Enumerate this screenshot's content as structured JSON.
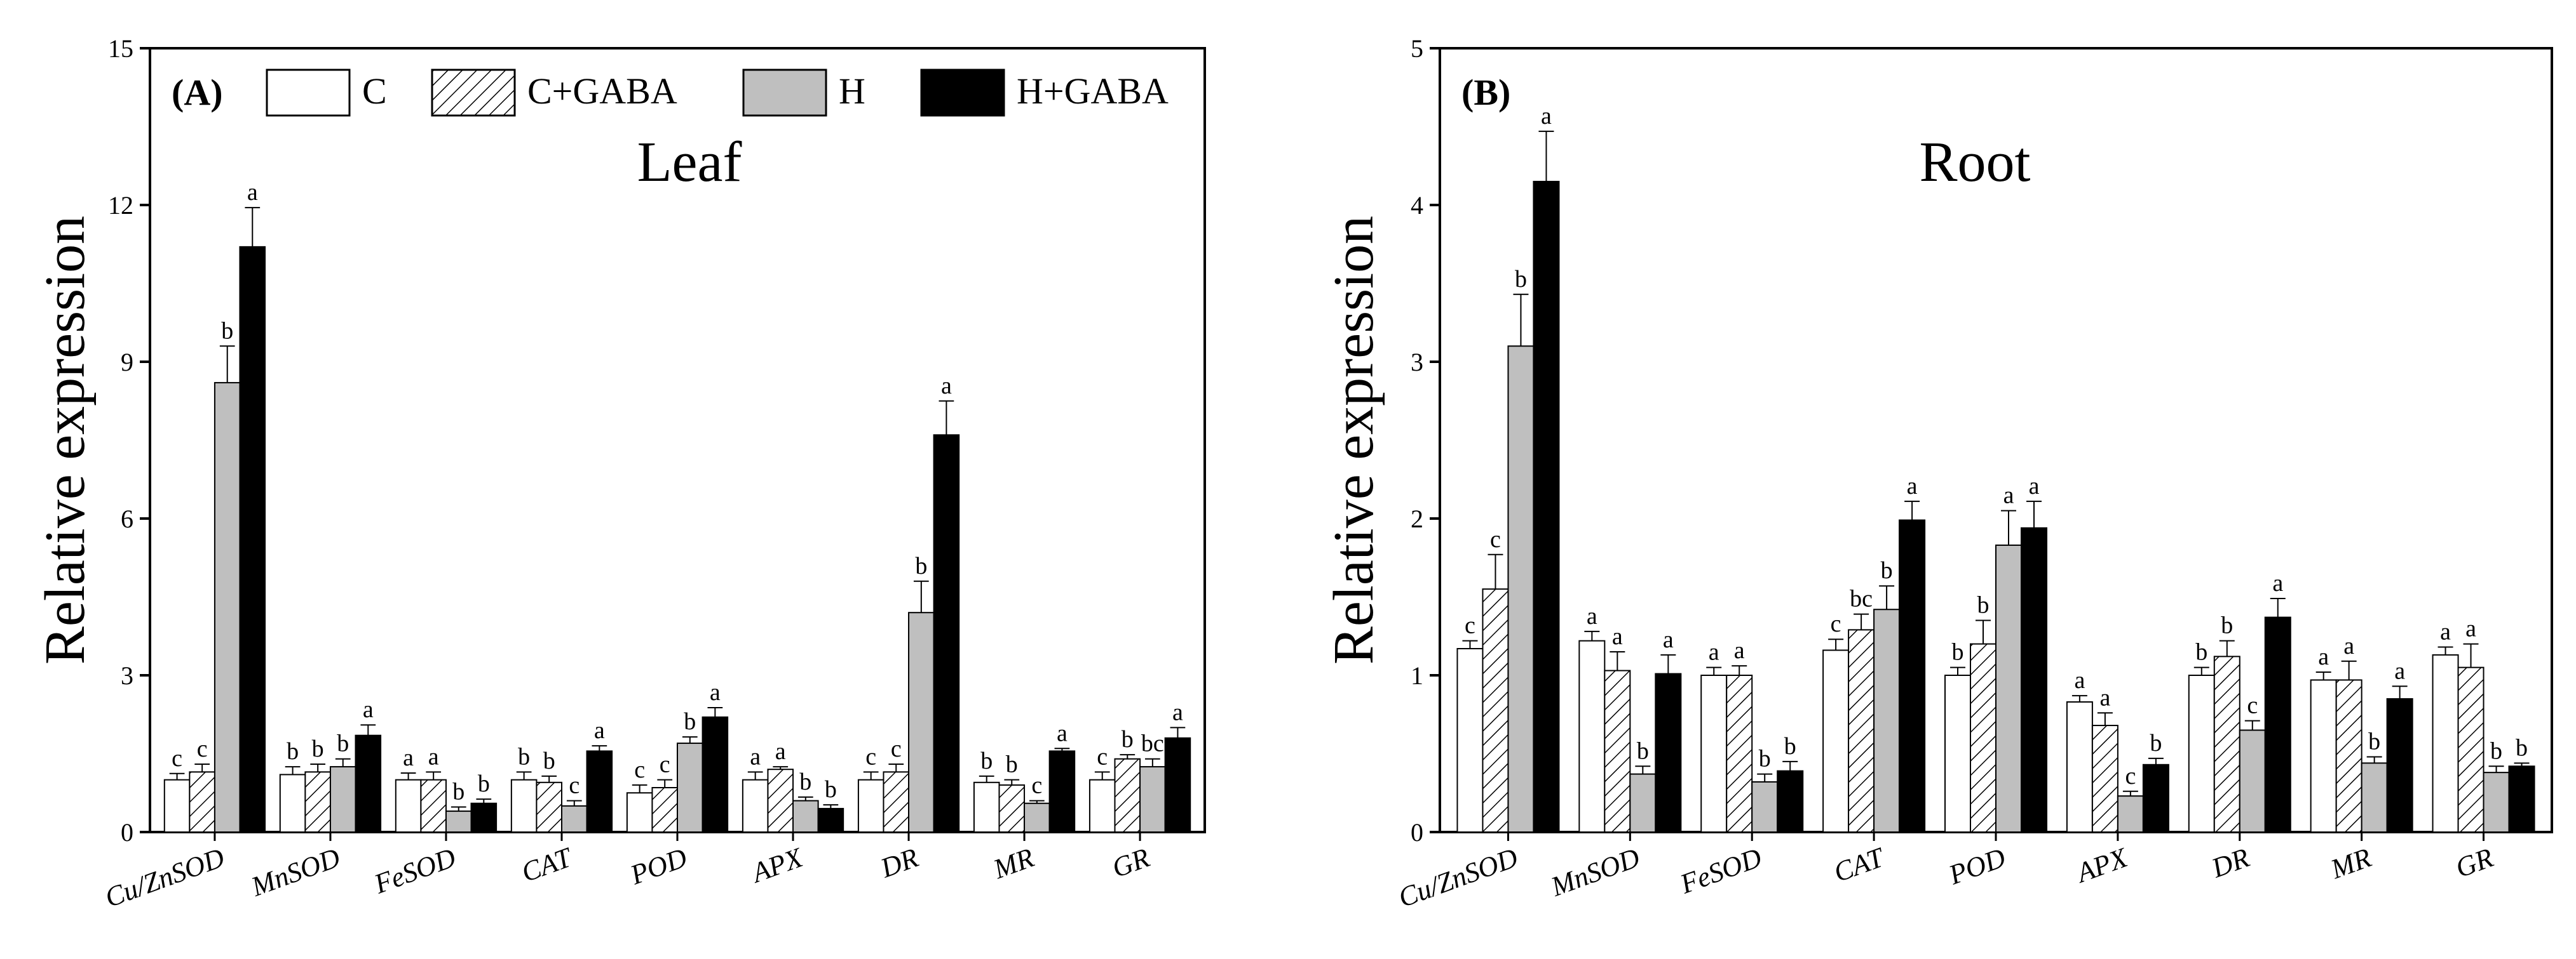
{
  "legend": [
    {
      "label": "C",
      "fill": "white"
    },
    {
      "label": "C+GABA",
      "fill": "hatch"
    },
    {
      "label": "H",
      "fill": "#bfbfbf"
    },
    {
      "label": "H+GABA",
      "fill": "#000000"
    }
  ],
  "colors": {
    "white": "#ffffff",
    "gray": "#bfbfbf",
    "black": "#000000",
    "axis": "#000000"
  },
  "chart_data": [
    {
      "type": "bar",
      "panel_label": "(A)",
      "title": "Leaf",
      "ylabel": "Relative expression",
      "xlabel": "",
      "ylim": [
        0,
        15
      ],
      "yticks": [
        "0",
        "3",
        "6",
        "9",
        "12",
        "15"
      ],
      "legend_position": "top",
      "categories": [
        "Cu/ZnSOD",
        "MnSOD",
        "FeSOD",
        "CAT",
        "POD",
        "APX",
        "DR",
        "MR",
        "GR"
      ],
      "series": [
        {
          "name": "C",
          "values": [
            1.0,
            1.1,
            1.0,
            1.0,
            0.75,
            1.0,
            1.0,
            0.95,
            1.0
          ],
          "errors": [
            0.12,
            0.15,
            0.13,
            0.15,
            0.15,
            0.15,
            0.15,
            0.12,
            0.15
          ],
          "labels": [
            "c",
            "b",
            "a",
            "b",
            "c",
            "a",
            "c",
            "b",
            "c"
          ]
        },
        {
          "name": "C+GABA",
          "values": [
            1.15,
            1.15,
            1.0,
            0.95,
            0.85,
            1.2,
            1.15,
            0.9,
            1.4
          ],
          "errors": [
            0.15,
            0.15,
            0.15,
            0.12,
            0.15,
            0.05,
            0.15,
            0.1,
            0.08
          ],
          "labels": [
            "c",
            "b",
            "a",
            "b",
            "c",
            "a",
            "c",
            "b",
            "b"
          ]
        },
        {
          "name": "H",
          "values": [
            8.6,
            1.25,
            0.4,
            0.5,
            1.7,
            0.6,
            4.2,
            0.55,
            1.25
          ],
          "errors": [
            0.7,
            0.15,
            0.08,
            0.1,
            0.12,
            0.07,
            0.6,
            0.05,
            0.15
          ],
          "labels": [
            "b",
            "b",
            "b",
            "c",
            "b",
            "b",
            "b",
            "c",
            "bc"
          ]
        },
        {
          "name": "H+GABA",
          "values": [
            11.2,
            1.85,
            0.55,
            1.55,
            2.2,
            0.45,
            7.6,
            1.55,
            1.8
          ],
          "errors": [
            0.75,
            0.2,
            0.08,
            0.1,
            0.18,
            0.07,
            0.65,
            0.05,
            0.2
          ],
          "labels": [
            "a",
            "a",
            "b",
            "a",
            "a",
            "b",
            "a",
            "a",
            "a"
          ]
        }
      ]
    },
    {
      "type": "bar",
      "panel_label": "(B)",
      "title": "Root",
      "ylabel": "Relative expression",
      "xlabel": "",
      "ylim": [
        0,
        5
      ],
      "yticks": [
        "0",
        "1",
        "2",
        "3",
        "4",
        "5"
      ],
      "categories": [
        "Cu/ZnSOD",
        "MnSOD",
        "FeSOD",
        "CAT",
        "POD",
        "APX",
        "DR",
        "MR",
        "GR"
      ],
      "series": [
        {
          "name": "C",
          "values": [
            1.17,
            1.22,
            1.0,
            1.16,
            1.0,
            0.83,
            1.0,
            0.97,
            1.13
          ],
          "errors": [
            0.05,
            0.06,
            0.05,
            0.07,
            0.05,
            0.04,
            0.05,
            0.05,
            0.05
          ],
          "labels": [
            "c",
            "a",
            "a",
            "c",
            "b",
            "a",
            "b",
            "a",
            "a"
          ]
        },
        {
          "name": "C+GABA",
          "values": [
            1.55,
            1.03,
            1.0,
            1.29,
            1.2,
            0.68,
            1.12,
            0.97,
            1.05
          ],
          "errors": [
            0.22,
            0.12,
            0.06,
            0.1,
            0.15,
            0.08,
            0.1,
            0.12,
            0.15
          ],
          "labels": [
            "c",
            "a",
            "a",
            "bc",
            "b",
            "a",
            "b",
            "a",
            "a"
          ]
        },
        {
          "name": "H",
          "values": [
            3.1,
            0.37,
            0.32,
            1.42,
            1.83,
            0.23,
            0.65,
            0.44,
            0.38
          ],
          "errors": [
            0.33,
            0.05,
            0.05,
            0.15,
            0.22,
            0.03,
            0.06,
            0.04,
            0.04
          ],
          "labels": [
            "b",
            "b",
            "b",
            "b",
            "a",
            "c",
            "c",
            "b",
            "b"
          ]
        },
        {
          "name": "H+GABA",
          "values": [
            4.15,
            1.01,
            0.39,
            1.99,
            1.94,
            0.43,
            1.37,
            0.85,
            0.42
          ],
          "errors": [
            0.32,
            0.12,
            0.06,
            0.12,
            0.17,
            0.04,
            0.12,
            0.08,
            0.02
          ],
          "labels": [
            "a",
            "a",
            "b",
            "a",
            "a",
            "b",
            "a",
            "a",
            "b"
          ]
        }
      ]
    }
  ]
}
